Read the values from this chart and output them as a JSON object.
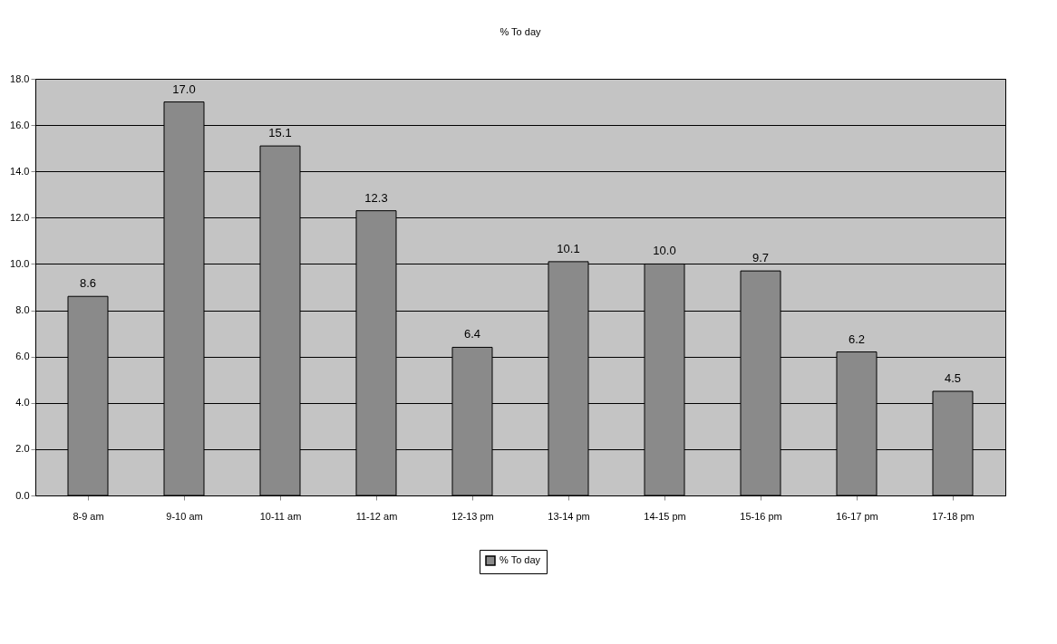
{
  "chart_data": {
    "type": "bar",
    "title": "% To day",
    "categories": [
      "8-9 am",
      "9-10 am",
      "10-11 am",
      "11-12 am",
      "12-13 pm",
      "13-14 pm",
      "14-15 pm",
      "15-16 pm",
      "16-17 pm",
      "17-18 pm"
    ],
    "series": [
      {
        "name": "% To day",
        "color": "#8a8a8a",
        "values": [
          8.6,
          17.0,
          15.1,
          12.3,
          6.4,
          10.1,
          10.0,
          9.7,
          6.2,
          4.5
        ],
        "value_labels": [
          "8.6",
          "17.0",
          "15.1",
          "12.3",
          "6.4",
          "10.1",
          "10.0",
          "9.7",
          "6.2",
          "4.5"
        ]
      }
    ],
    "ylim": [
      0,
      18
    ],
    "yticks": [
      {
        "value": 0,
        "label": "0.0"
      },
      {
        "value": 2,
        "label": "2.0"
      },
      {
        "value": 4,
        "label": "4.0"
      },
      {
        "value": 6,
        "label": "6.0"
      },
      {
        "value": 8,
        "label": "8.0"
      },
      {
        "value": 10,
        "label": "10.0"
      },
      {
        "value": 12,
        "label": "12.0"
      },
      {
        "value": 14,
        "label": "14.0"
      },
      {
        "value": 16,
        "label": "16.0"
      },
      {
        "value": 18,
        "label": "18.0"
      }
    ],
    "grid": "y",
    "legend": "bottom"
  }
}
